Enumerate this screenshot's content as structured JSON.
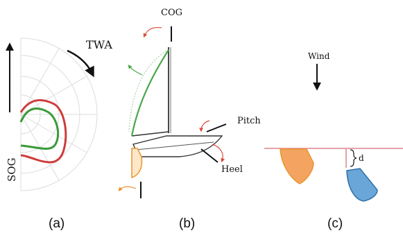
{
  "panel_a": {
    "caption": "(a)",
    "y_label": "SOG",
    "angle_label": "TWA",
    "colors": {
      "red": "#cf3b3b",
      "green": "#3a9a3a",
      "grid": "#dcdcdc"
    }
  },
  "panel_b": {
    "caption": "(b)",
    "cog_label": "COG",
    "pitch_label": "Pitch",
    "heel_label": "Heel",
    "colors": {
      "sail": "#4aa84a",
      "rudder": "#e8952e",
      "arrow": "#d84d3a"
    }
  },
  "panel_c": {
    "caption": "(c)",
    "wind_label": "Wind",
    "distance_label": "d",
    "colors": {
      "line": "#e7a2a8",
      "boat_orange": "#f4a460",
      "boat_blue": "#6aa6d8"
    }
  }
}
